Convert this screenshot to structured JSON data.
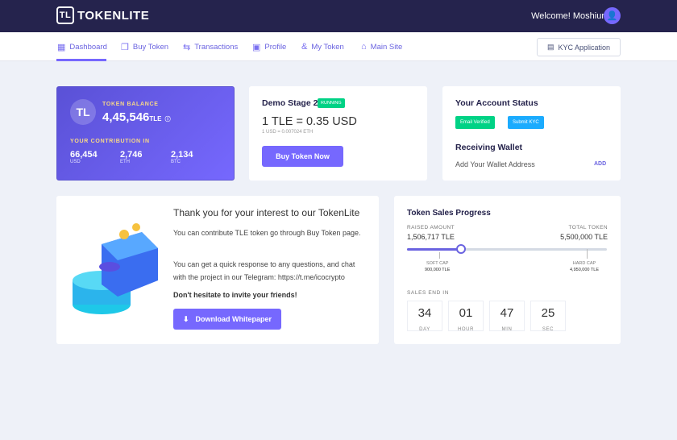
{
  "header": {
    "brand": "TOKENLITE",
    "welcome": "Welcome! Moshiur"
  },
  "nav": {
    "items": [
      {
        "label": "Dashboard",
        "icon": "grid-icon"
      },
      {
        "label": "Buy Token",
        "icon": "coins-icon"
      },
      {
        "label": "Transactions",
        "icon": "transfer-icon"
      },
      {
        "label": "Profile",
        "icon": "user-card-icon"
      },
      {
        "label": "My Token",
        "icon": "token-icon"
      },
      {
        "label": "Main Site",
        "icon": "home-icon"
      }
    ],
    "kyc": "KYC Application"
  },
  "balance": {
    "label": "TOKEN BALANCE",
    "amount": "4,45,546",
    "unit": "TLE",
    "contrib_label": "YOUR CONTRIBUTION IN",
    "contribs": [
      {
        "value": "66,454",
        "cur": "USD"
      },
      {
        "value": "2,746",
        "cur": "ETH"
      },
      {
        "value": "2,134",
        "cur": "BTC"
      }
    ]
  },
  "stage": {
    "title": "Demo Stage 2",
    "badge": "RUNNING",
    "price": "1 TLE = 0.35 USD",
    "rate": "1 USD = 0.007024 ETH",
    "button": "Buy Token Now"
  },
  "account": {
    "title": "Your Account Status",
    "email_badge": "Email Verified",
    "kyc_badge": "Submit KYC",
    "wallet_title": "Receiving Wallet",
    "wallet_text": "Add Your Wallet Address",
    "add": "ADD"
  },
  "info": {
    "title": "Thank you for your interest to our TokenLite",
    "p1": "You can contribute TLE token go through Buy Token page.",
    "p2": "You can get a quick response to any questions, and chat with the project in our Telegram: https://t.me/icocrypto",
    "p3": "Don't hesitate to invite your friends!",
    "button": "Download Whitepaper"
  },
  "progress": {
    "title": "Token Sales Progress",
    "raised_label": "RAISED AMOUNT",
    "raised": "1,506,717 TLE",
    "total_label": "TOTAL TOKEN",
    "total": "5,500,000 TLE",
    "percent": 27,
    "soft_label": "SOFT CAP",
    "soft": "900,000 TLE",
    "hard_label": "HARD CAP",
    "hard": "4,950,000 TLE",
    "ends_label": "SALES END IN",
    "countdown": [
      {
        "v": "34",
        "u": "DAY"
      },
      {
        "v": "01",
        "u": "HOUR"
      },
      {
        "v": "47",
        "u": "MIN"
      },
      {
        "v": "25",
        "u": "SEC"
      }
    ]
  },
  "colors": {
    "accent": "#7668fe",
    "header": "#25234d",
    "green": "#00d285",
    "blue": "#1babfe"
  }
}
